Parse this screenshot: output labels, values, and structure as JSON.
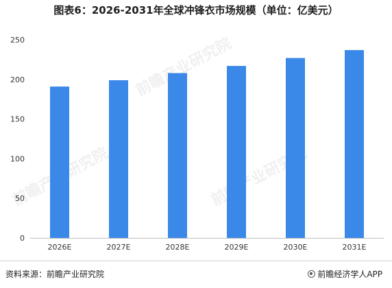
{
  "title": "图表6：2026-2031年全球冲锋衣市场规模（单位：亿美元）",
  "chart_data": {
    "type": "bar",
    "categories": [
      "2026E",
      "2027E",
      "2028E",
      "2029E",
      "2030E",
      "2031E"
    ],
    "values": [
      191,
      199,
      208,
      217,
      227,
      237
    ],
    "ylim": [
      0,
      250
    ],
    "yticks": [
      0,
      50,
      100,
      150,
      200,
      250
    ],
    "grid": false,
    "legend": "none",
    "bar_color": "#3a88e8"
  },
  "footer": {
    "source": "资料来源：前瞻产业研究院",
    "brand": "前瞻经济学人APP"
  },
  "watermark": "前瞻产业研究院"
}
